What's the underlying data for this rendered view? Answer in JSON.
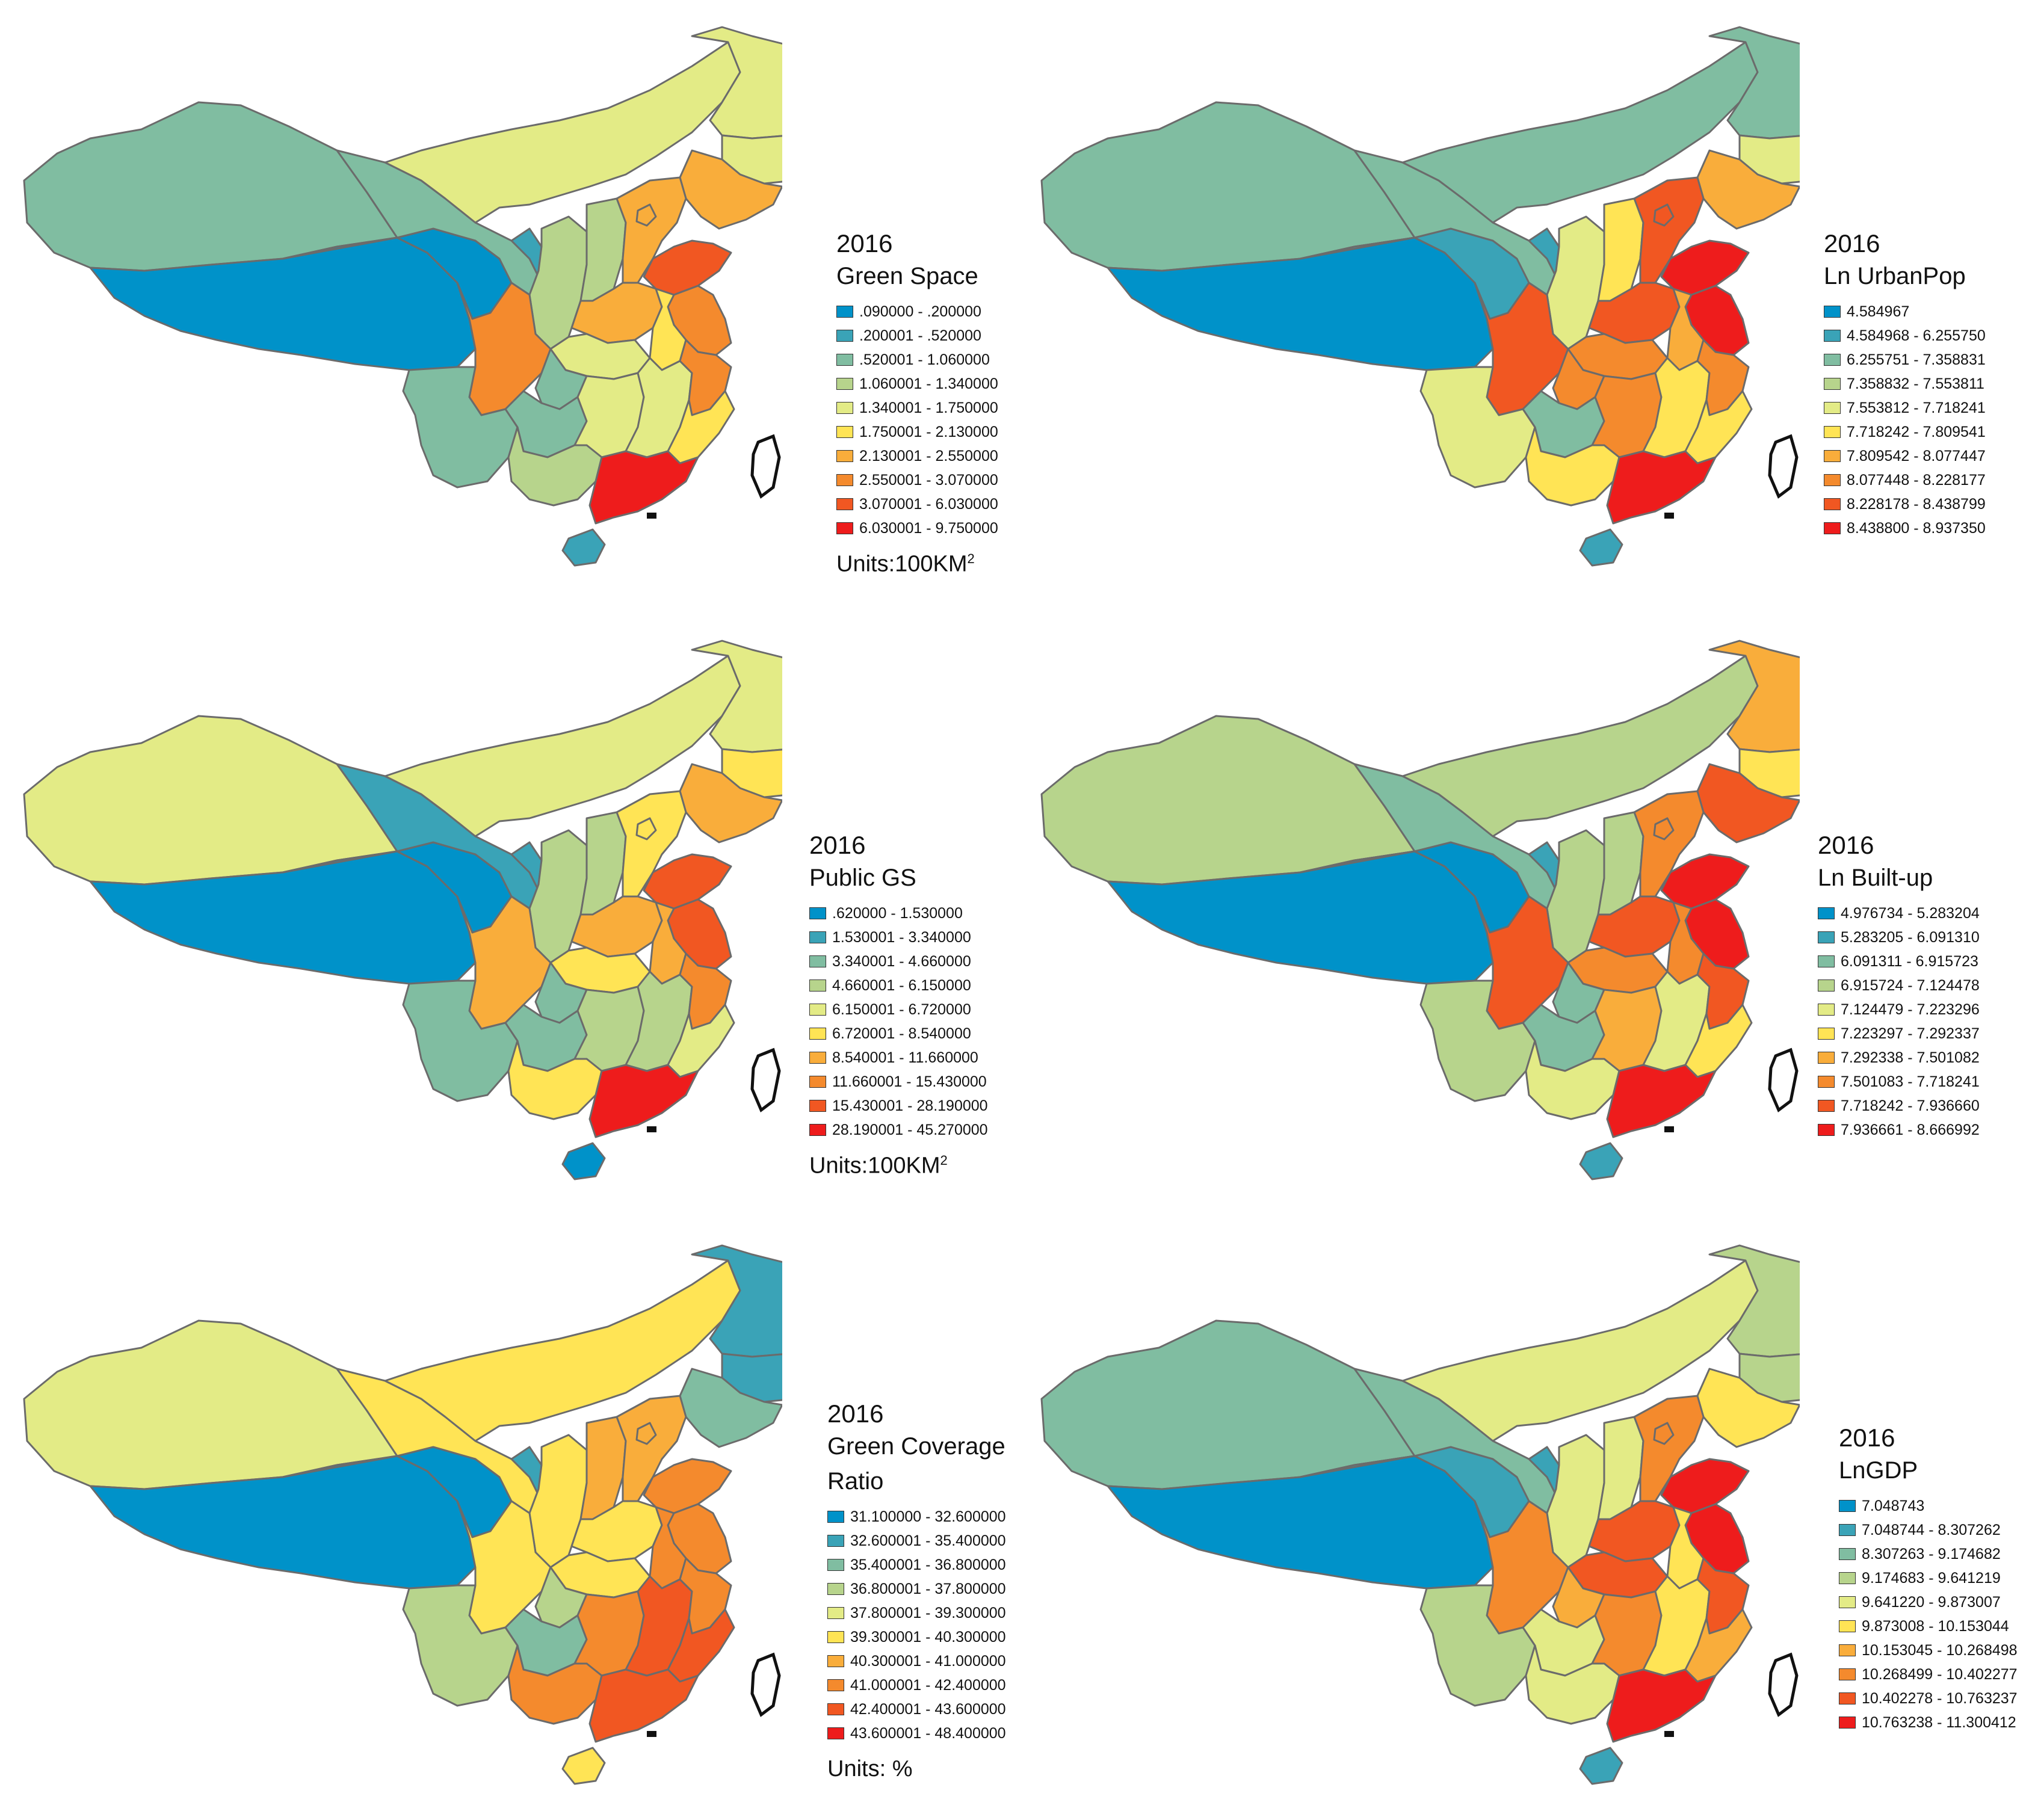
{
  "maps": [
    {
      "year": "2016",
      "title": "Green Space",
      "units": "Units:100KM",
      "units_sup": "2",
      "classes": [
        ".090000 - .200000",
        ".200001 - .520000",
        ".520001 - 1.060000",
        "1.060001 - 1.340000",
        "1.340001 - 1.750000",
        "1.750001 - 2.130000",
        "2.130001 - 2.550000",
        "2.550001 - 3.070000",
        "3.070001 - 6.030000",
        "6.030001 - 9.750000"
      ],
      "region_class": {
        "xinjiang": 2,
        "tibet": 0,
        "qinghai": 0,
        "gansu": 2,
        "inner_mongolia": 4,
        "heilongjiang": 4,
        "jilin": 4,
        "liaoning": 6,
        "ningxia": 1,
        "shaanxi": 3,
        "shanxi": 3,
        "hebei": 6,
        "shandong": 8,
        "henan": 6,
        "jiangsu": 7,
        "anhui": 5,
        "hubei": 4,
        "sichuan": 7,
        "chongqing": 2,
        "yunnan": 2,
        "guizhou": 2,
        "hunan": 4,
        "jiangxi": 4,
        "zhejiang": 7,
        "fujian": 5,
        "guangxi": 3,
        "guangdong": 9,
        "hainan": 1
      }
    },
    {
      "year": "2016",
      "title": "Ln UrbanPop",
      "units": "",
      "units_sup": "",
      "classes": [
        "4.584967",
        "4.584968 - 6.255750",
        "6.255751 - 7.358831",
        "7.358832 - 7.553811",
        "7.553812 - 7.718241",
        "7.718242 - 7.809541",
        "7.809542 - 8.077447",
        "8.077448 - 8.228177",
        "8.228178 - 8.438799",
        "8.438800 - 8.937350"
      ],
      "region_class": {
        "xinjiang": 2,
        "tibet": 0,
        "qinghai": 1,
        "gansu": 2,
        "inner_mongolia": 2,
        "heilongjiang": 2,
        "jilin": 4,
        "liaoning": 6,
        "ningxia": 1,
        "shaanxi": 4,
        "shanxi": 5,
        "hebei": 8,
        "shandong": 9,
        "henan": 8,
        "jiangsu": 9,
        "anhui": 6,
        "hubei": 7,
        "sichuan": 8,
        "chongqing": 7,
        "yunnan": 4,
        "guizhou": 2,
        "hunan": 7,
        "jiangxi": 5,
        "zhejiang": 7,
        "fujian": 5,
        "guangxi": 5,
        "guangdong": 9,
        "hainan": 1
      }
    },
    {
      "year": "2016",
      "title": "Public GS",
      "units": "Units:100KM",
      "units_sup": "2",
      "classes": [
        ".620000 - 1.530000",
        "1.530001 - 3.340000",
        "3.340001 - 4.660000",
        "4.660001 - 6.150000",
        "6.150001 - 6.720000",
        "6.720001 - 8.540000",
        "8.540001 - 11.660000",
        "11.660001 - 15.430000",
        "15.430001 - 28.190000",
        "28.190001 - 45.270000"
      ],
      "region_class": {
        "xinjiang": 4,
        "tibet": 0,
        "qinghai": 0,
        "gansu": 1,
        "inner_mongolia": 4,
        "heilongjiang": 4,
        "jilin": 5,
        "liaoning": 6,
        "ningxia": 1,
        "shaanxi": 3,
        "shanxi": 3,
        "hebei": 5,
        "shandong": 8,
        "henan": 6,
        "jiangsu": 8,
        "anhui": 6,
        "hubei": 5,
        "sichuan": 6,
        "chongqing": 2,
        "yunnan": 2,
        "guizhou": 2,
        "hunan": 3,
        "jiangxi": 3,
        "zhejiang": 7,
        "fujian": 4,
        "guangxi": 5,
        "guangdong": 9,
        "hainan": 0
      }
    },
    {
      "year": "2016",
      "title": "Ln Built-up",
      "units": "",
      "units_sup": "",
      "classes": [
        "4.976734 - 5.283204",
        "5.283205 - 6.091310",
        "6.091311 - 6.915723",
        "6.915724 - 7.124478",
        "7.124479 - 7.223296",
        "7.223297 - 7.292337",
        "7.292338 - 7.501082",
        "7.501083 - 7.718241",
        "7.718242 - 7.936660",
        "7.936661 - 8.666992"
      ],
      "region_class": {
        "xinjiang": 3,
        "tibet": 0,
        "qinghai": 0,
        "gansu": 2,
        "inner_mongolia": 3,
        "heilongjiang": 6,
        "jilin": 5,
        "liaoning": 8,
        "ningxia": 1,
        "shaanxi": 3,
        "shanxi": 3,
        "hebei": 7,
        "shandong": 9,
        "henan": 8,
        "jiangsu": 9,
        "anhui": 7,
        "hubei": 7,
        "sichuan": 8,
        "chongqing": 2,
        "yunnan": 3,
        "guizhou": 2,
        "hunan": 6,
        "jiangxi": 4,
        "zhejiang": 8,
        "fujian": 5,
        "guangxi": 4,
        "guangdong": 9,
        "hainan": 1
      }
    },
    {
      "year": "2016",
      "title": "Green Coverage",
      "title_line2": "Ratio",
      "units": "Units: %",
      "units_sup": "",
      "classes": [
        "31.100000 - 32.600000",
        "32.600001 - 35.400000",
        "35.400001 - 36.800000",
        "36.800001 - 37.800000",
        "37.800001 - 39.300000",
        "39.300001 - 40.300000",
        "40.300001 - 41.000000",
        "41.000001 - 42.400000",
        "42.400001 - 43.600000",
        "43.600001 - 48.400000"
      ],
      "region_class": {
        "xinjiang": 4,
        "tibet": 0,
        "qinghai": 0,
        "gansu": 5,
        "inner_mongolia": 5,
        "heilongjiang": 1,
        "jilin": 1,
        "liaoning": 2,
        "ningxia": 1,
        "shaanxi": 5,
        "shanxi": 6,
        "hebei": 6,
        "shandong": 7,
        "henan": 5,
        "jiangsu": 7,
        "anhui": 7,
        "hubei": 5,
        "sichuan": 5,
        "chongqing": 3,
        "yunnan": 3,
        "guizhou": 2,
        "hunan": 7,
        "jiangxi": 8,
        "zhejiang": 7,
        "fujian": 8,
        "guangxi": 7,
        "guangdong": 8,
        "hainan": 5
      }
    },
    {
      "year": "2016",
      "title": "LnGDP",
      "units": "",
      "units_sup": "",
      "classes": [
        "7.048743",
        "7.048744 - 8.307262",
        "8.307263 - 9.174682",
        "9.174683 - 9.641219",
        "9.641220 - 9.873007",
        "9.873008 - 10.153044",
        "10.153045 - 10.268498",
        "10.268499 - 10.402277",
        "10.402278 - 10.763237",
        "10.763238 - 11.300412"
      ],
      "region_class": {
        "xinjiang": 2,
        "tibet": 0,
        "qinghai": 1,
        "gansu": 2,
        "inner_mongolia": 4,
        "heilongjiang": 3,
        "jilin": 3,
        "liaoning": 5,
        "ningxia": 1,
        "shaanxi": 4,
        "shanxi": 4,
        "hebei": 7,
        "shandong": 9,
        "henan": 8,
        "jiangsu": 9,
        "anhui": 5,
        "hubei": 8,
        "sichuan": 7,
        "chongqing": 6,
        "yunnan": 3,
        "guizhou": 4,
        "hunan": 7,
        "jiangxi": 5,
        "zhejiang": 8,
        "fujian": 6,
        "guangxi": 4,
        "guangdong": 9,
        "hainan": 1
      }
    }
  ],
  "palette": [
    "#0092c9",
    "#3aa3b7",
    "#80bda1",
    "#b7d48c",
    "#e3eb86",
    "#ffe455",
    "#f9ad3b",
    "#f48a2d",
    "#f15722",
    "#ee1c1c"
  ]
}
